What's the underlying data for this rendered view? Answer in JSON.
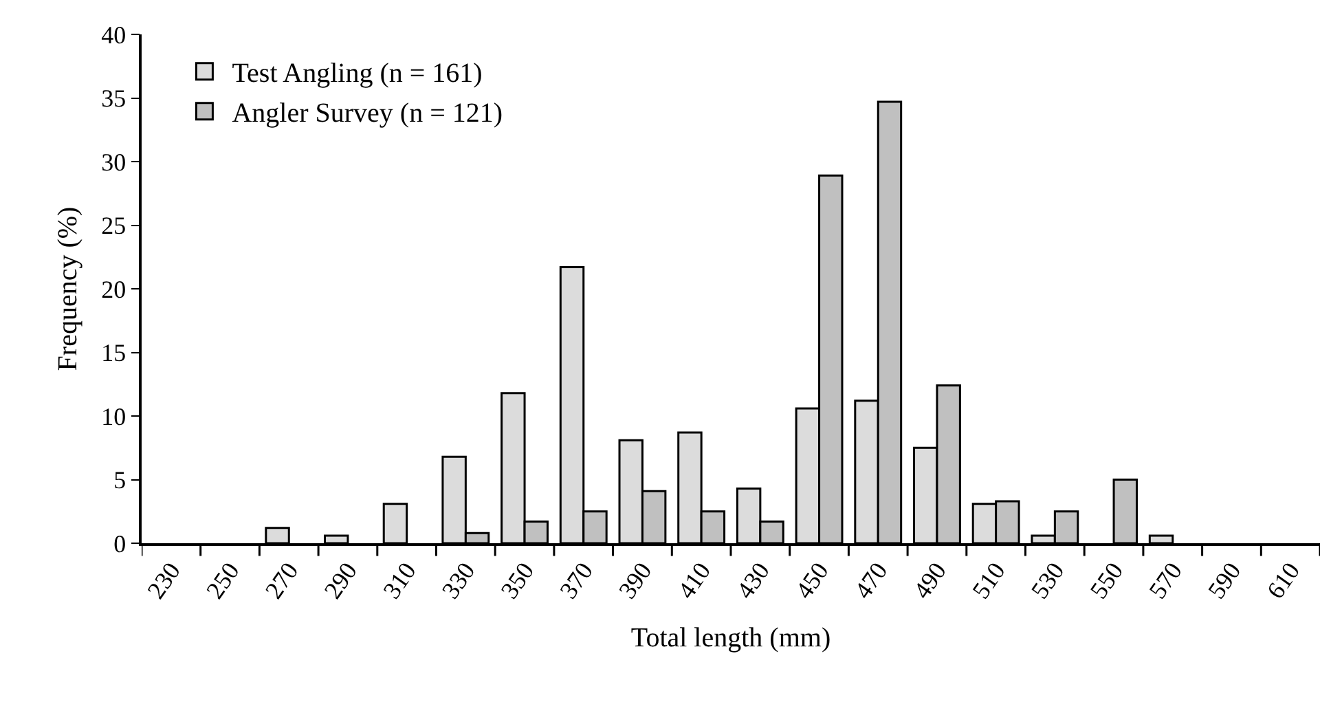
{
  "chart_data": {
    "type": "bar",
    "xlabel": "Total length (mm)",
    "ylabel": "Frequency (%)",
    "categories": [
      "230",
      "250",
      "270",
      "290",
      "310",
      "330",
      "350",
      "370",
      "390",
      "410",
      "430",
      "450",
      "470",
      "490",
      "510",
      "530",
      "550",
      "570",
      "590",
      "610"
    ],
    "series": [
      {
        "name": "Test Angling (n = 161)",
        "color": "#dcdcdc",
        "values": [
          0,
          0,
          1.2,
          0.6,
          3.1,
          6.8,
          11.8,
          21.7,
          8.1,
          8.7,
          4.3,
          10.6,
          11.2,
          7.5,
          3.1,
          0.6,
          0,
          0.6,
          0,
          0
        ]
      },
      {
        "name": "Angler Survey (n = 121)",
        "color": "#c0c0c0",
        "values": [
          0,
          0,
          0,
          0,
          0,
          0.8,
          1.7,
          2.5,
          4.1,
          2.5,
          1.7,
          28.9,
          34.7,
          12.4,
          3.3,
          2.5,
          5.0,
          0,
          0,
          0
        ]
      }
    ],
    "ylim": [
      0,
      40
    ],
    "yticks": [
      0,
      5,
      10,
      15,
      20,
      25,
      30,
      35,
      40
    ],
    "grid": false,
    "legend": "top left"
  }
}
